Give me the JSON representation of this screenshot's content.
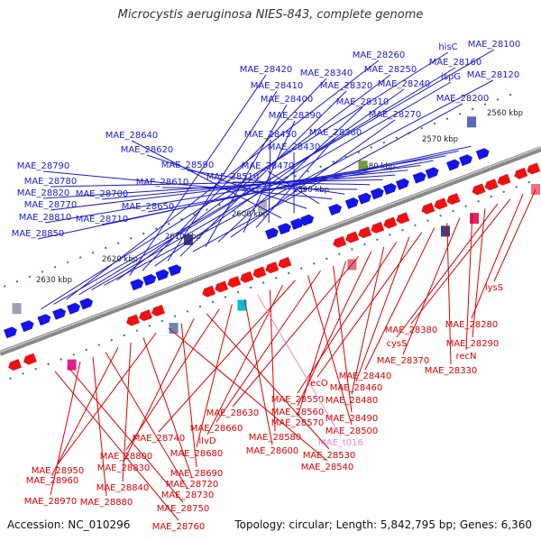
{
  "title": "Microcystis aeruginosa NIES-843, complete genome",
  "footer": {
    "accession": "Accession: NC_010296",
    "summary": "Topology: circular; Length: 5,842,795 bp; Genes: 6,360"
  },
  "colors": {
    "backbone": "#888888",
    "forward_label": "#1a1acc",
    "reverse_label": "#dd0000",
    "rna_label": "#ee88cc",
    "tick": "#2a8a2a"
  },
  "scale": {
    "unit": "kbp",
    "ticks": [
      "2560 kbp",
      "2570 kbp",
      "2580 kbp",
      "2590 kbp",
      "2600 kbp",
      "2610 kbp",
      "2620 kbp",
      "2630 kbp"
    ]
  },
  "forward_labels": [
    "hisC",
    "MAE_28100",
    "MAE_28260",
    "MAE_28160",
    "ispG",
    "MAE_28120",
    "MAE_28250",
    "MAE_28420",
    "MAE_28340",
    "MAE_28240",
    "MAE_28410",
    "MAE_28320",
    "MAE_28200",
    "MAE_28400",
    "MAE_28310",
    "MAE_28270",
    "MAE_28390",
    "MAE_28360",
    "MAE_28450",
    "MAE_28640",
    "MAE_28430",
    "MAE_28620",
    "MAE_28470",
    "MAE_28790",
    "MAE_28590",
    "MAE_28610",
    "MAE_28510",
    "MAE_28780",
    "MAE_28820",
    "MAE_28700",
    "MAE_28770",
    "MAE_28650",
    "MAE_28810",
    "MAE_28710",
    "MAE_28850"
  ],
  "reverse_labels": [
    "lysS",
    "MAE_28280",
    "MAE_28380",
    "cysS",
    "MAE_28290",
    "recN",
    "MAE_28370",
    "MAE_28330",
    "MAE_28440",
    "recO",
    "MAE_28460",
    "MAE_28550",
    "MAE_28480",
    "MAE_28560",
    "MAE_28630",
    "MAE_28570",
    "MAE_28490",
    "MAE_28660",
    "MAE_28500",
    "MAE_28740",
    "ilvD",
    "MAE_28580",
    "MAE_t016",
    "MAE_28600",
    "MAE_28680",
    "MAE_28800",
    "MAE_28530",
    "MAE_28830",
    "MAE_28690",
    "MAE_28540",
    "MAE_28950",
    "MAE_28720",
    "MAE_28840",
    "MAE_28960",
    "MAE_28730",
    "MAE_28880",
    "MAE_28970",
    "MAE_28750",
    "MAE_28760"
  ]
}
